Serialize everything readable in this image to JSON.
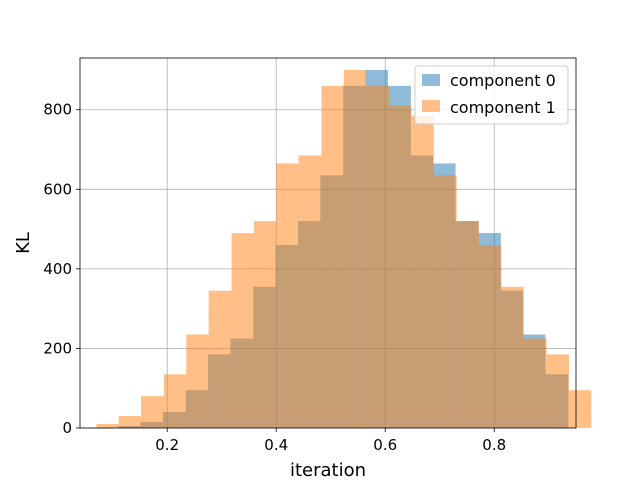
{
  "chart_data": {
    "type": "histogram",
    "title": "",
    "xlabel": "iteration",
    "ylabel": "KL",
    "xlim": [
      0.04,
      0.95
    ],
    "ylim": [
      0,
      930
    ],
    "xticks": [
      0.2,
      0.4,
      0.6,
      0.8
    ],
    "xtick_labels": [
      "0.2",
      "0.4",
      "0.6",
      "0.8"
    ],
    "yticks": [
      0,
      200,
      400,
      600,
      800
    ],
    "ytick_labels": [
      "0",
      "200",
      "400",
      "600",
      "800"
    ],
    "grid": true,
    "legend_position": "upper right",
    "bin_width": 0.0413,
    "series": [
      {
        "name": "component 0",
        "color": "#1f77b4",
        "opacity": 0.5,
        "bins": [
          {
            "x0": 0.11,
            "x1": 0.151,
            "y": 5
          },
          {
            "x0": 0.151,
            "x1": 0.192,
            "y": 15
          },
          {
            "x0": 0.192,
            "x1": 0.234,
            "y": 40
          },
          {
            "x0": 0.234,
            "x1": 0.275,
            "y": 95
          },
          {
            "x0": 0.275,
            "x1": 0.316,
            "y": 185
          },
          {
            "x0": 0.316,
            "x1": 0.358,
            "y": 225
          },
          {
            "x0": 0.358,
            "x1": 0.399,
            "y": 355
          },
          {
            "x0": 0.399,
            "x1": 0.44,
            "y": 460
          },
          {
            "x0": 0.44,
            "x1": 0.481,
            "y": 520
          },
          {
            "x0": 0.481,
            "x1": 0.523,
            "y": 635
          },
          {
            "x0": 0.523,
            "x1": 0.564,
            "y": 860
          },
          {
            "x0": 0.564,
            "x1": 0.605,
            "y": 900
          },
          {
            "x0": 0.605,
            "x1": 0.647,
            "y": 860
          },
          {
            "x0": 0.647,
            "x1": 0.688,
            "y": 685
          },
          {
            "x0": 0.688,
            "x1": 0.729,
            "y": 665
          },
          {
            "x0": 0.729,
            "x1": 0.771,
            "y": 520
          },
          {
            "x0": 0.771,
            "x1": 0.812,
            "y": 490
          },
          {
            "x0": 0.812,
            "x1": 0.853,
            "y": 345
          },
          {
            "x0": 0.853,
            "x1": 0.894,
            "y": 235
          },
          {
            "x0": 0.894,
            "x1": 0.936,
            "y": 135
          }
        ],
        "values_note": null
      },
      {
        "name": "component 1",
        "color": "#ff7f0e",
        "opacity": 0.5,
        "bins": [
          {
            "x0": 0.07,
            "x1": 0.111,
            "y": 10
          },
          {
            "x0": 0.111,
            "x1": 0.152,
            "y": 30
          },
          {
            "x0": 0.152,
            "x1": 0.194,
            "y": 80
          },
          {
            "x0": 0.194,
            "x1": 0.235,
            "y": 135
          },
          {
            "x0": 0.235,
            "x1": 0.276,
            "y": 235
          },
          {
            "x0": 0.276,
            "x1": 0.318,
            "y": 345
          },
          {
            "x0": 0.318,
            "x1": 0.359,
            "y": 490
          },
          {
            "x0": 0.359,
            "x1": 0.4,
            "y": 520
          },
          {
            "x0": 0.4,
            "x1": 0.441,
            "y": 665
          },
          {
            "x0": 0.441,
            "x1": 0.483,
            "y": 685
          },
          {
            "x0": 0.483,
            "x1": 0.524,
            "y": 860
          },
          {
            "x0": 0.524,
            "x1": 0.565,
            "y": 900
          },
          {
            "x0": 0.565,
            "x1": 0.607,
            "y": 860
          },
          {
            "x0": 0.607,
            "x1": 0.648,
            "y": 810
          },
          {
            "x0": 0.648,
            "x1": 0.689,
            "y": 785
          },
          {
            "x0": 0.689,
            "x1": 0.731,
            "y": 635
          },
          {
            "x0": 0.731,
            "x1": 0.772,
            "y": 520
          },
          {
            "x0": 0.772,
            "x1": 0.813,
            "y": 460
          },
          {
            "x0": 0.813,
            "x1": 0.854,
            "y": 355
          },
          {
            "x0": 0.854,
            "x1": 0.896,
            "y": 225
          },
          {
            "x0": 0.896,
            "x1": 0.937,
            "y": 185
          },
          {
            "x0": 0.937,
            "x1": 0.978,
            "y": 95
          }
        ]
      }
    ]
  }
}
